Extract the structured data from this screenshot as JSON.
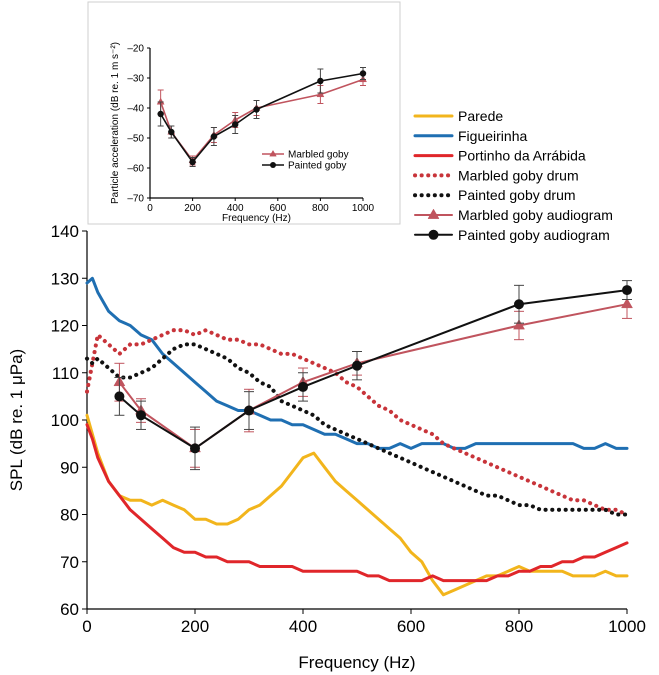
{
  "chart_data": [
    {
      "id": "main",
      "type": "line",
      "xlabel": "Frequency (Hz)",
      "ylabel": "SPL (dB re. 1 μPa)",
      "xlim": [
        0,
        1000
      ],
      "ylim": [
        60,
        140
      ],
      "xticks": [
        "0",
        "200",
        "400",
        "600",
        "800",
        "1000"
      ],
      "yticks": [
        "60",
        "70",
        "80",
        "90",
        "100",
        "110",
        "120",
        "130",
        "140"
      ],
      "grid": false,
      "legend_position": "right, above plot area",
      "series": [
        {
          "name": "Parede",
          "style": "solid",
          "color": "#f2b51c",
          "x": [
            0,
            10,
            20,
            40,
            60,
            80,
            100,
            120,
            140,
            160,
            180,
            200,
            220,
            240,
            260,
            280,
            300,
            320,
            340,
            360,
            380,
            400,
            420,
            440,
            460,
            480,
            500,
            520,
            540,
            560,
            580,
            600,
            620,
            640,
            660,
            680,
            700,
            720,
            740,
            760,
            780,
            800,
            820,
            840,
            860,
            880,
            900,
            920,
            940,
            960,
            980,
            1000
          ],
          "y": [
            101,
            97,
            93,
            87,
            84,
            83,
            83,
            82,
            83,
            82,
            81,
            79,
            79,
            78,
            78,
            79,
            81,
            82,
            84,
            86,
            89,
            92,
            93,
            90,
            87,
            85,
            83,
            81,
            79,
            77,
            75,
            72,
            70,
            66,
            63,
            64,
            65,
            66,
            67,
            67,
            68,
            69,
            68,
            68,
            68,
            68,
            67,
            67,
            67,
            68,
            67,
            67
          ]
        },
        {
          "name": "Figueirinha",
          "style": "solid",
          "color": "#1f6fb2",
          "x": [
            0,
            10,
            20,
            40,
            60,
            80,
            100,
            120,
            140,
            160,
            180,
            200,
            220,
            240,
            260,
            280,
            300,
            320,
            340,
            360,
            380,
            400,
            420,
            440,
            460,
            480,
            500,
            520,
            540,
            560,
            580,
            600,
            620,
            640,
            660,
            680,
            700,
            720,
            740,
            760,
            780,
            800,
            820,
            840,
            860,
            880,
            900,
            920,
            940,
            960,
            980,
            1000
          ],
          "y": [
            129,
            130,
            127,
            123,
            121,
            120,
            118,
            117,
            114,
            112,
            110,
            108,
            106,
            104,
            103,
            102,
            102,
            101,
            100,
            100,
            99,
            99,
            98,
            97,
            97,
            96,
            95,
            95,
            94,
            94,
            95,
            94,
            95,
            95,
            95,
            94,
            94,
            95,
            95,
            95,
            95,
            95,
            95,
            95,
            95,
            95,
            95,
            94,
            94,
            95,
            94,
            94
          ]
        },
        {
          "name": "Portinho da Arrábida",
          "style": "solid",
          "color": "#e0262a",
          "x": [
            0,
            10,
            20,
            40,
            60,
            80,
            100,
            120,
            140,
            160,
            180,
            200,
            220,
            240,
            260,
            280,
            300,
            320,
            340,
            360,
            380,
            400,
            420,
            440,
            460,
            480,
            500,
            520,
            540,
            560,
            580,
            600,
            620,
            640,
            660,
            680,
            700,
            720,
            740,
            760,
            780,
            800,
            820,
            840,
            860,
            880,
            900,
            920,
            940,
            960,
            980,
            1000
          ],
          "y": [
            99,
            96,
            92,
            87,
            84,
            81,
            79,
            77,
            75,
            73,
            72,
            72,
            71,
            71,
            70,
            70,
            70,
            69,
            69,
            69,
            69,
            68,
            68,
            68,
            68,
            68,
            68,
            67,
            67,
            66,
            66,
            66,
            66,
            67,
            66,
            66,
            66,
            66,
            66,
            67,
            67,
            68,
            68,
            69,
            69,
            70,
            70,
            71,
            71,
            72,
            73,
            74
          ]
        },
        {
          "name": "Marbled goby drum",
          "style": "dotted",
          "color": "#c8343a",
          "x": [
            0,
            10,
            20,
            40,
            60,
            80,
            100,
            120,
            140,
            160,
            180,
            200,
            220,
            240,
            260,
            280,
            300,
            320,
            340,
            360,
            380,
            400,
            420,
            440,
            460,
            480,
            500,
            520,
            540,
            560,
            580,
            600,
            620,
            640,
            660,
            680,
            700,
            720,
            740,
            760,
            780,
            800,
            820,
            840,
            860,
            880,
            900,
            920,
            940,
            960,
            980,
            1000
          ],
          "y": [
            106,
            112,
            118,
            116,
            114,
            116,
            116,
            117,
            118,
            119,
            119,
            118,
            119,
            118,
            117,
            117,
            116,
            116,
            115,
            114,
            114,
            113,
            112,
            111,
            110,
            108,
            107,
            105,
            103,
            102,
            100,
            99,
            98,
            97,
            95,
            94,
            93,
            92,
            91,
            90,
            89,
            88,
            87,
            86,
            85,
            84,
            83,
            83,
            82,
            81,
            81,
            80
          ]
        },
        {
          "name": "Painted goby drum",
          "style": "dotted",
          "color": "#111111",
          "x": [
            0,
            10,
            20,
            40,
            60,
            80,
            100,
            120,
            140,
            160,
            180,
            200,
            220,
            240,
            260,
            280,
            300,
            320,
            340,
            360,
            380,
            400,
            420,
            440,
            460,
            480,
            500,
            520,
            540,
            560,
            580,
            600,
            620,
            640,
            660,
            680,
            700,
            720,
            740,
            760,
            780,
            800,
            820,
            840,
            860,
            880,
            900,
            920,
            940,
            960,
            980,
            1000
          ],
          "y": [
            113,
            112,
            113,
            111,
            109,
            109,
            110,
            111,
            113,
            115,
            116,
            116,
            115,
            114,
            113,
            111,
            110,
            108,
            107,
            104,
            103,
            102,
            101,
            99,
            98,
            97,
            96,
            95,
            94,
            93,
            92,
            91,
            90,
            89,
            88,
            87,
            86,
            85,
            84,
            84,
            83,
            82,
            82,
            81,
            81,
            81,
            81,
            81,
            81,
            81,
            80,
            80
          ]
        },
        {
          "name": "Marbled goby audiogram",
          "style": "solid-triangle",
          "color": "#c0545e",
          "x": [
            60,
            100,
            200,
            300,
            400,
            500,
            800,
            1000
          ],
          "y": [
            108,
            102,
            94,
            102,
            108,
            112,
            120,
            124.5
          ],
          "err": [
            4,
            2.5,
            4,
            4.5,
            3,
            2.5,
            3,
            3
          ]
        },
        {
          "name": "Painted goby audiogram",
          "style": "solid-circle",
          "color": "#111111",
          "x": [
            60,
            100,
            200,
            300,
            400,
            500,
            800,
            1000
          ],
          "y": [
            105,
            101,
            94,
            102,
            107,
            111.5,
            124.5,
            127.5
          ],
          "err": [
            4,
            3,
            4.5,
            4,
            3,
            3,
            4,
            2
          ]
        }
      ]
    },
    {
      "id": "inset",
      "type": "line",
      "xlabel": "Frequency (Hz)",
      "ylabel": "Particle acceleration (dB re. 1 m s⁻²)",
      "xlim": [
        0,
        1000
      ],
      "ylim": [
        -70,
        -20
      ],
      "xticks": [
        "0",
        "200",
        "400",
        "600",
        "800",
        "1000"
      ],
      "yticks": [
        "–70",
        "–60",
        "–50",
        "–40",
        "–30",
        "–20"
      ],
      "grid": false,
      "legend_position": "inside plot, lower center",
      "series": [
        {
          "name": "Marbled goby",
          "style": "solid-triangle",
          "color": "#c0545e",
          "x": [
            50,
            100,
            200,
            300,
            400,
            500,
            800,
            1000
          ],
          "y": [
            -38,
            -48,
            -57.5,
            -49,
            -44,
            -40,
            -35.5,
            -30.5
          ],
          "err": [
            4,
            2,
            1.5,
            2.5,
            2.5,
            2.5,
            3,
            2
          ]
        },
        {
          "name": "Painted goby",
          "style": "solid-circle",
          "color": "#111111",
          "x": [
            50,
            100,
            200,
            300,
            400,
            500,
            800,
            1000
          ],
          "y": [
            -42,
            -48,
            -58,
            -49.5,
            -45.5,
            -40.5,
            -31,
            -28.5
          ],
          "err": [
            4,
            2,
            1.5,
            3,
            3,
            3,
            4,
            2
          ]
        }
      ]
    }
  ]
}
